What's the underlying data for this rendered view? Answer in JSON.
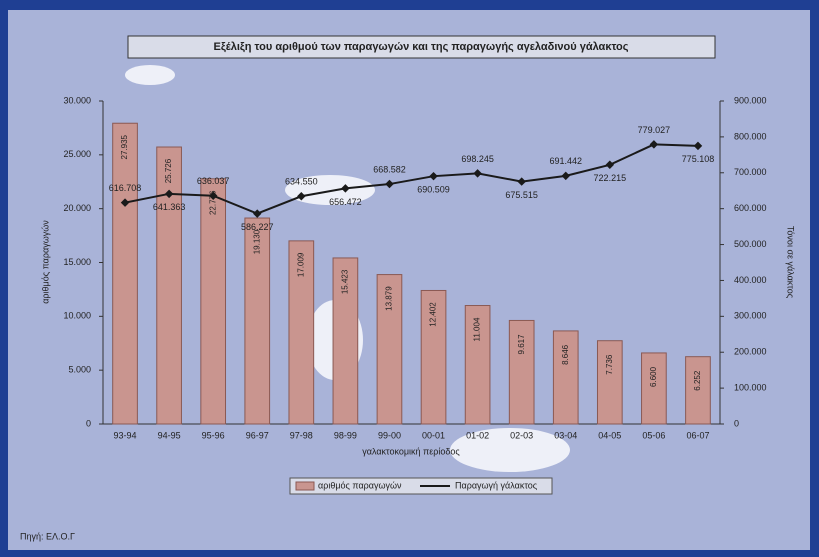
{
  "chart_data": {
    "type": "combo",
    "title": "Εξέλιξη του αριθμού των παραγωγών και της παραγωγής αγελαδινού γάλακτος",
    "categories": [
      "93-94",
      "94-95",
      "95-96",
      "96-97",
      "97-98",
      "98-99",
      "99-00",
      "00-01",
      "01-02",
      "02-03",
      "03-04",
      "04-05",
      "05-06",
      "06-07"
    ],
    "series": [
      {
        "name": "αριθμός παραγωγών",
        "type": "bar",
        "color": "#c9958f",
        "values": [
          27935,
          25726,
          22776,
          19130,
          17009,
          15423,
          13879,
          12402,
          11004,
          9617,
          8646,
          7736,
          6600,
          6252
        ],
        "value_labels": [
          "27.935",
          "25.726",
          "22.776",
          "19.130",
          "17.009",
          "15.423",
          "13.879",
          "12.402",
          "11.004",
          "9.617",
          "8.646",
          "7.736",
          "6.600",
          "6.252"
        ]
      },
      {
        "name": "Παραγωγή γάλακτος",
        "type": "line",
        "color": "#1a1a1a",
        "axis": "y2",
        "values": [
          616708,
          641363,
          636037,
          586227,
          634550,
          656472,
          668582,
          690509,
          698245,
          675515,
          691442,
          722215,
          779027,
          775108
        ],
        "value_labels": [
          "616.708",
          "641.363",
          "636.037",
          "586.227",
          "634.550",
          "656.472",
          "668.582",
          "690.509",
          "698.245",
          "675.515",
          "691.442",
          "722.215",
          "779.027",
          "775.108"
        ]
      }
    ],
    "xlabel": "γαλακτοκομική περίοδος",
    "ylabel": "αριθμός παραγωγών",
    "y2label": "Τόνοι σε γάλακτος",
    "ylim": [
      0,
      30000
    ],
    "yticks": [
      0,
      {
        "value": 5000,
        "label": "5.000"
      },
      {
        "value": 10000,
        "label": "10.000"
      },
      {
        "value": 15000,
        "label": "15.000"
      },
      {
        "value": 20000,
        "label": "20.000"
      },
      {
        "value": 25000,
        "label": "25.000"
      },
      {
        "value": 30000,
        "label": "30.000"
      }
    ],
    "y2lim": [
      0,
      900000
    ],
    "y2ticks": [
      0,
      {
        "value": 100000,
        "label": "100.000"
      },
      {
        "value": 200000,
        "label": "200.000"
      },
      {
        "value": 300000,
        "label": "300.000"
      },
      {
        "value": 400000,
        "label": "400.000"
      },
      {
        "value": 500000,
        "label": "500.000"
      },
      {
        "value": 600000,
        "label": "600.000"
      },
      {
        "value": 700000,
        "label": "700.000"
      },
      {
        "value": 800000,
        "label": "800.000"
      },
      {
        "value": 900000,
        "label": "900.000"
      }
    ],
    "source": "Πηγή: ΕΛ.Ο.Γ"
  }
}
